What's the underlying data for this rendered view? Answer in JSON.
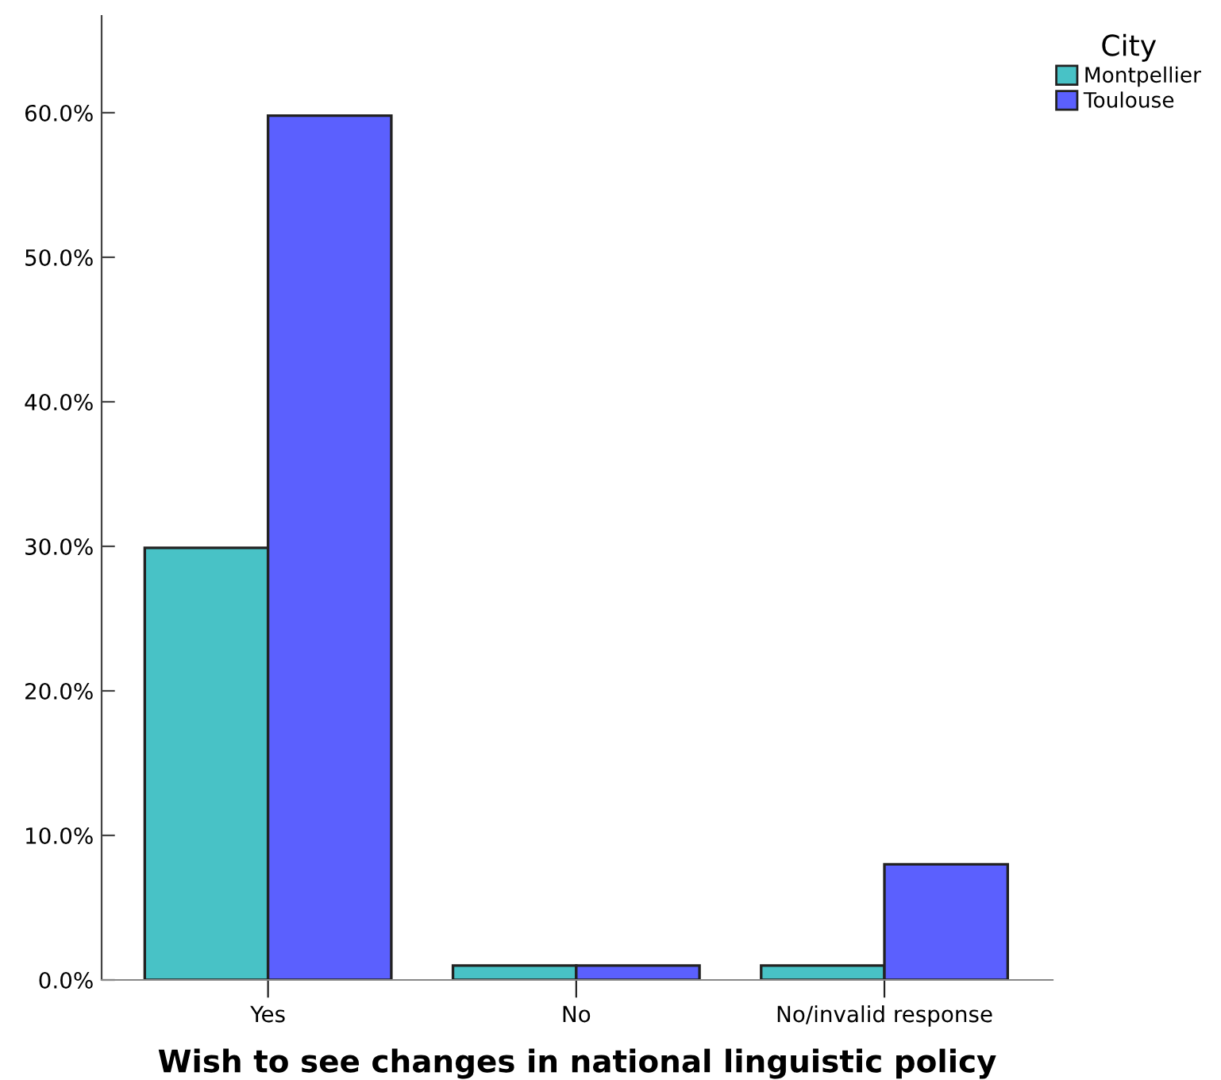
{
  "chart_data": {
    "type": "bar",
    "xlabel": "Wish to see changes in national linguistic policy",
    "legend_title": "City",
    "categories": [
      "Yes",
      "No",
      "No/invalid response"
    ],
    "series": [
      {
        "name": "Montpellier",
        "color": "#48c2c6",
        "values": [
          29.9,
          1.0,
          1.0
        ]
      },
      {
        "name": "Toulouse",
        "color": "#5b60fe",
        "values": [
          59.8,
          1.0,
          8.0
        ]
      }
    ],
    "ylim": [
      0,
      66.7
    ],
    "yticks": [
      {
        "value": 0,
        "label": "0.0%"
      },
      {
        "value": 10,
        "label": "10.0%"
      },
      {
        "value": 20,
        "label": "20.0%"
      },
      {
        "value": 30,
        "label": "30.0%"
      },
      {
        "value": 40,
        "label": "40.0%"
      },
      {
        "value": 50,
        "label": "50.0%"
      },
      {
        "value": 60,
        "label": "60.0%"
      }
    ],
    "grid": false,
    "legend": "top right"
  }
}
